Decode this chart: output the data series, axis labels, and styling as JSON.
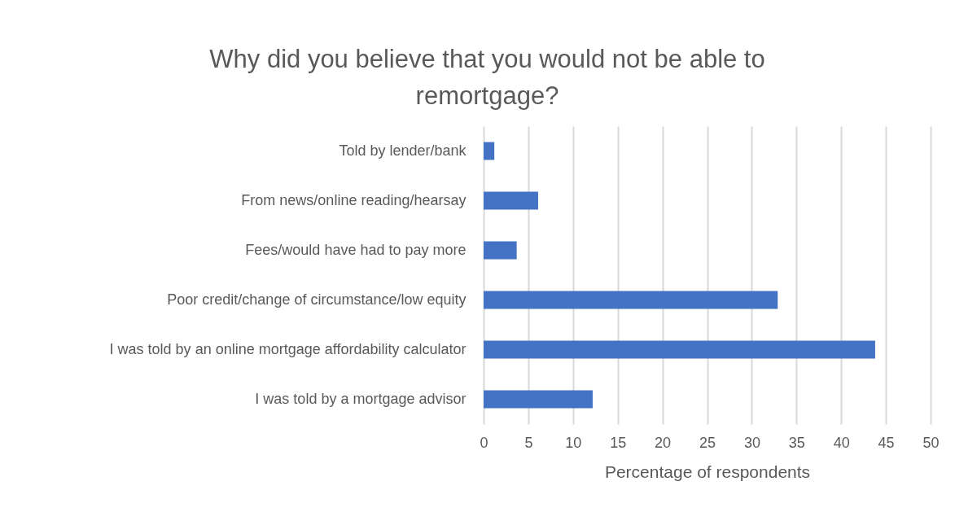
{
  "chart_data": {
    "type": "bar",
    "orientation": "horizontal",
    "title": "Why did you believe that you would not be able to remortgage?",
    "xlabel": "Percentage of respondents",
    "categories": [
      "Told by lender/bank",
      "From news/online reading/hearsay",
      "Fees/would have had to pay more",
      "Poor credit/change of circumstance/low equity",
      "I was told by an online mortgage affordability calculator",
      "I was told by a mortgage advisor"
    ],
    "values": [
      1.2,
      6.1,
      3.7,
      32.9,
      43.8,
      12.2
    ],
    "color": "#4472c4",
    "xlim": [
      0,
      50
    ],
    "xticks": [
      0,
      5,
      10,
      15,
      20,
      25,
      30,
      35,
      40,
      45,
      50
    ],
    "grid": "x"
  }
}
